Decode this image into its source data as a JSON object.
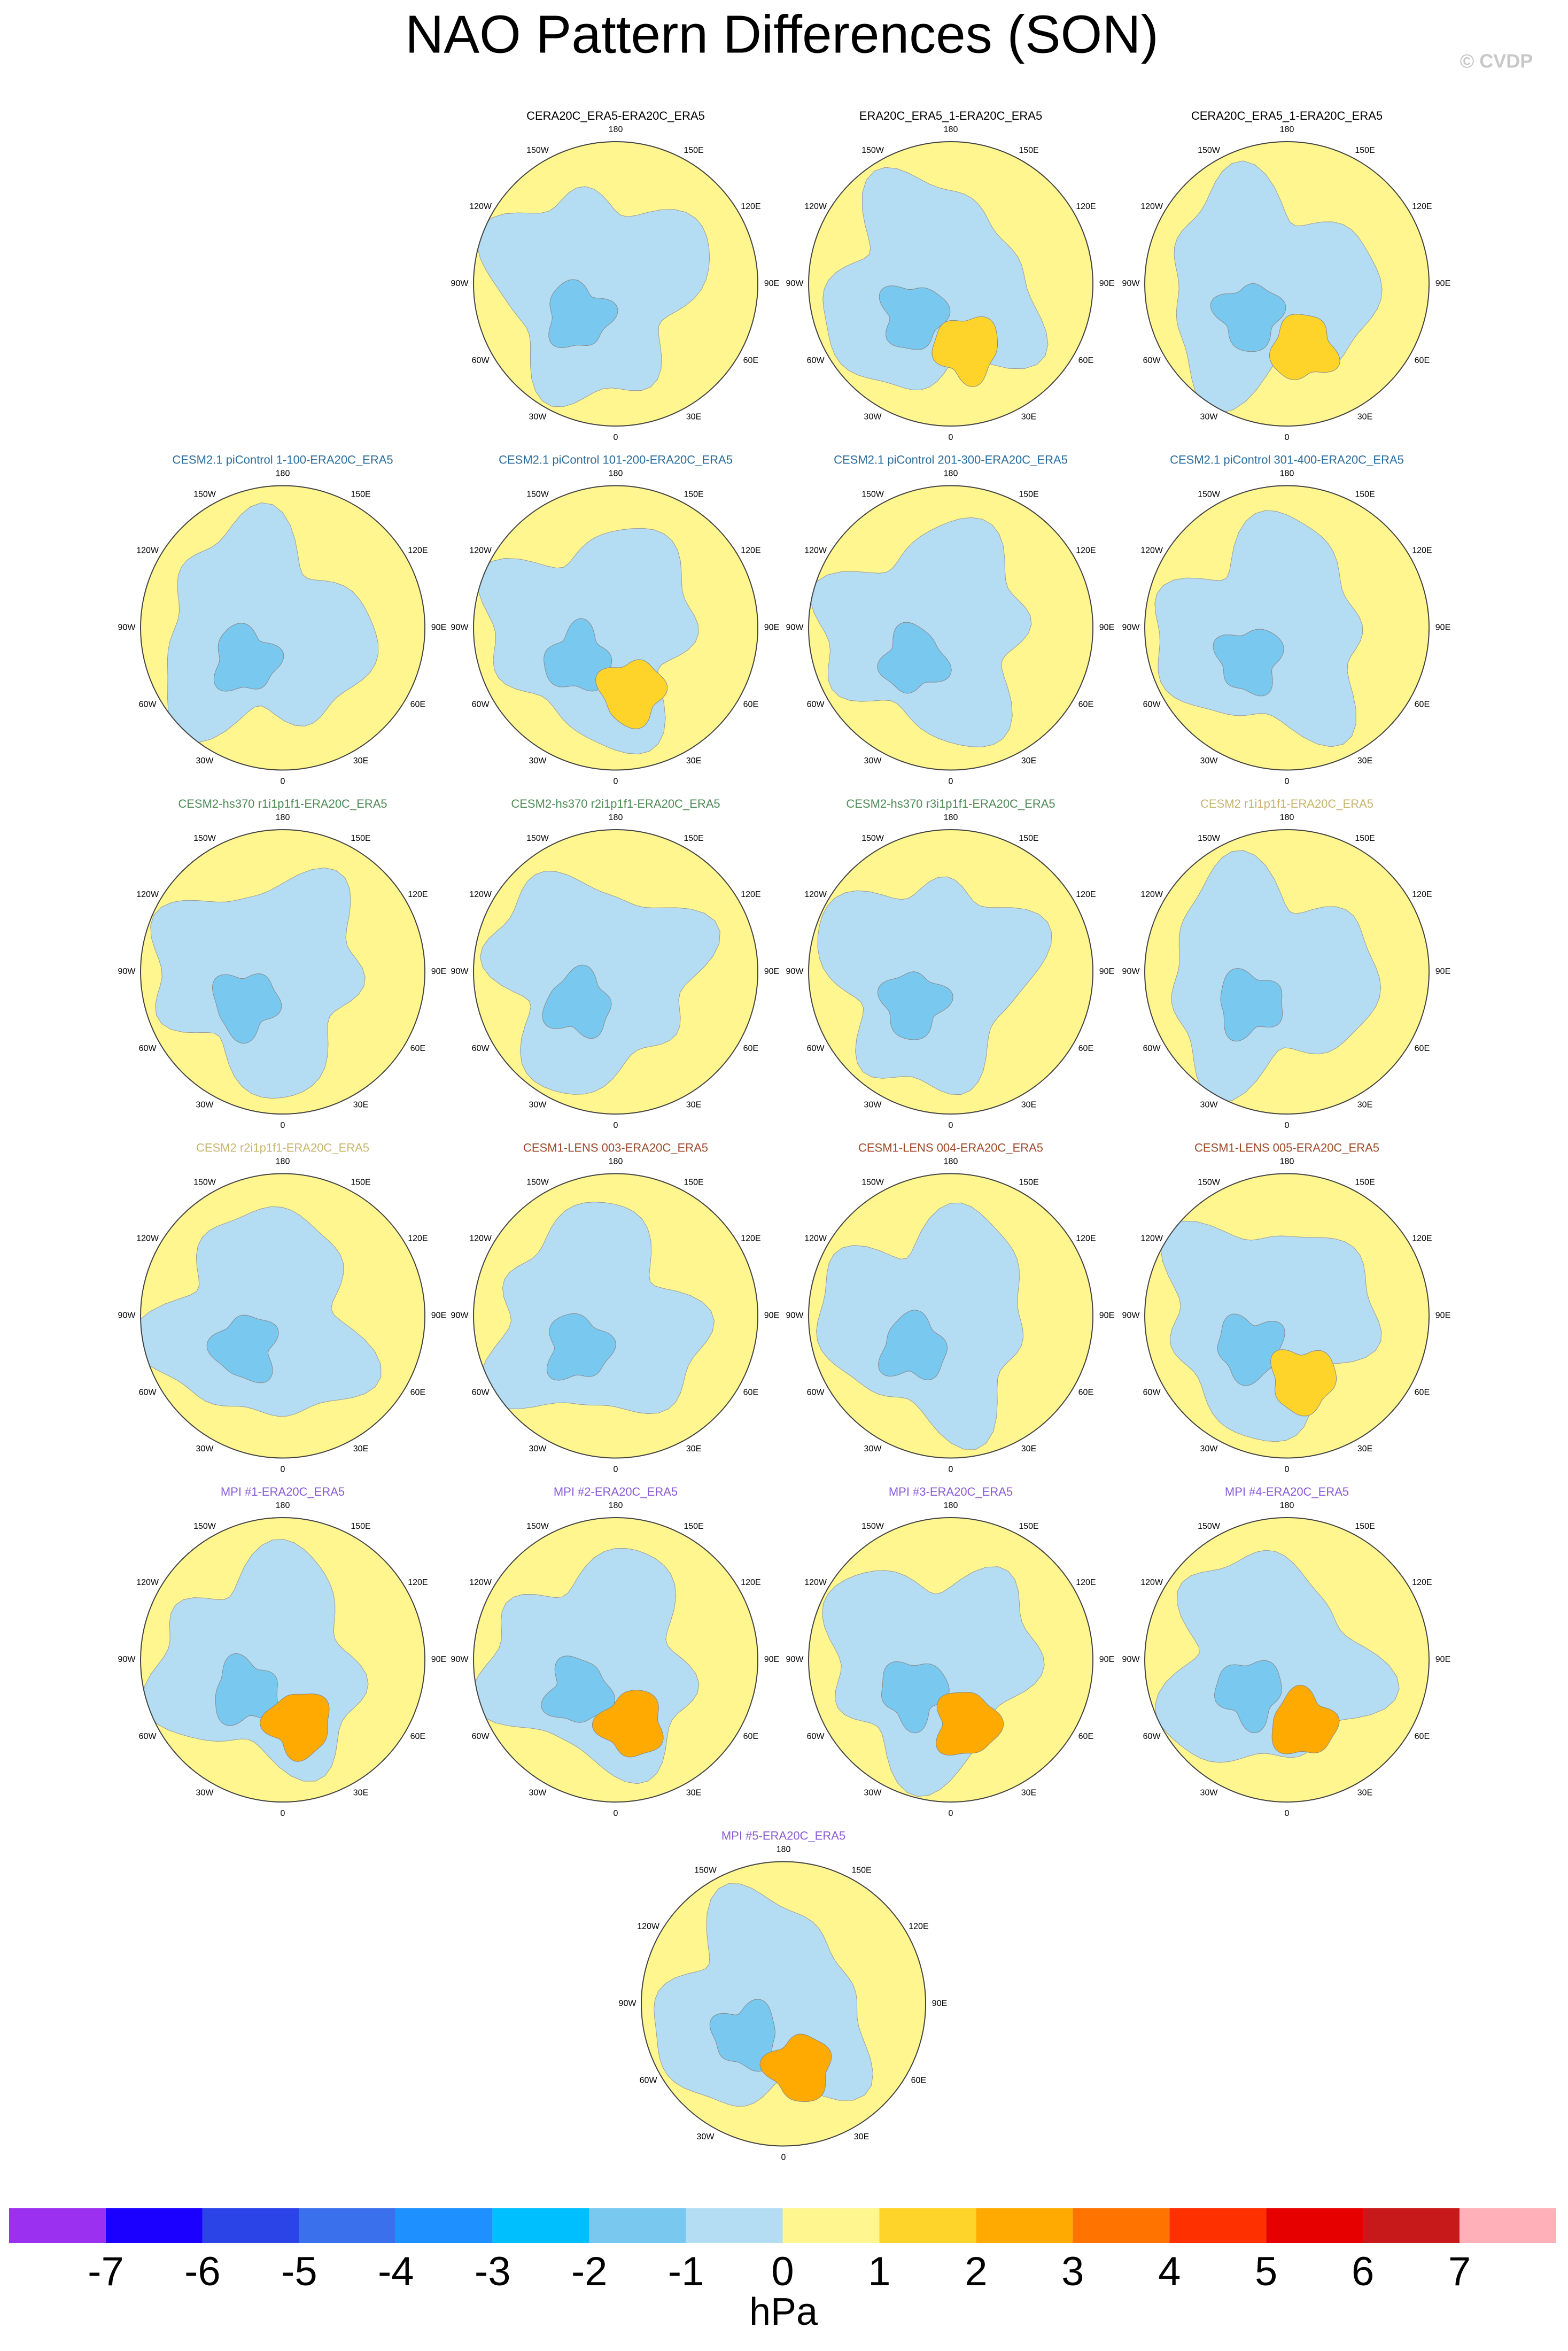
{
  "title": "NAO Pattern Differences (SON)",
  "credit": "© CVDP",
  "map_labels": [
    "180",
    "150E",
    "120E",
    "90E",
    "60E",
    "30E",
    "0",
    "30W",
    "60W",
    "90W",
    "120W",
    "150W"
  ],
  "panels": [
    {
      "title": "CERA20C_ERA5-ERA20C_ERA5",
      "color": "#000000"
    },
    {
      "title": "ERA20C_ERA5_1-ERA20C_ERA5",
      "color": "#000000"
    },
    {
      "title": "CERA20C_ERA5_1-ERA20C_ERA5",
      "color": "#000000"
    },
    {
      "title": "CESM2.1 piControl 1-100-ERA20C_ERA5",
      "color": "#2a6c9c"
    },
    {
      "title": "CESM2.1 piControl 101-200-ERA20C_ERA5",
      "color": "#2a6c9c"
    },
    {
      "title": "CESM2.1 piControl 201-300-ERA20C_ERA5",
      "color": "#2a6c9c"
    },
    {
      "title": "CESM2.1 piControl 301-400-ERA20C_ERA5",
      "color": "#2a6c9c"
    },
    {
      "title": "CESM2-hs370 r1i1p1f1-ERA20C_ERA5",
      "color": "#4d8a55"
    },
    {
      "title": "CESM2-hs370 r2i1p1f1-ERA20C_ERA5",
      "color": "#4d8a55"
    },
    {
      "title": "CESM2-hs370 r3i1p1f1-ERA20C_ERA5",
      "color": "#4d8a55"
    },
    {
      "title": "CESM2 r1i1p1f1-ERA20C_ERA5",
      "color": "#c8b46e"
    },
    {
      "title": "CESM2 r2i1p1f1-ERA20C_ERA5",
      "color": "#c8b46e"
    },
    {
      "title": "CESM1-LENS 003-ERA20C_ERA5",
      "color": "#9c4a2a"
    },
    {
      "title": "CESM1-LENS 004-ERA20C_ERA5",
      "color": "#9c4a2a"
    },
    {
      "title": "CESM1-LENS 005-ERA20C_ERA5",
      "color": "#9c4a2a"
    },
    {
      "title": "MPI #1-ERA20C_ERA5",
      "color": "#8a5ad8"
    },
    {
      "title": "MPI #2-ERA20C_ERA5",
      "color": "#8a5ad8"
    },
    {
      "title": "MPI #3-ERA20C_ERA5",
      "color": "#8a5ad8"
    },
    {
      "title": "MPI #4-ERA20C_ERA5",
      "color": "#8a5ad8"
    },
    {
      "title": "MPI #5-ERA20C_ERA5",
      "color": "#8a5ad8"
    }
  ],
  "colorbar": {
    "ticks": [
      -7,
      -6,
      -5,
      -4,
      -3,
      -2,
      -1,
      0,
      1,
      2,
      3,
      4,
      5,
      6,
      7
    ],
    "colors": [
      "#9b30f0",
      "#1c00ff",
      "#2b44e8",
      "#3a70ec",
      "#1e90ff",
      "#00bfff",
      "#79c8f0",
      "#b4ddf4",
      "#fff68f",
      "#ffd42a",
      "#ffaa00",
      "#ff7400",
      "#ff3000",
      "#e60000",
      "#c8191a",
      "#ffb0b8"
    ],
    "label": "hPa"
  }
}
